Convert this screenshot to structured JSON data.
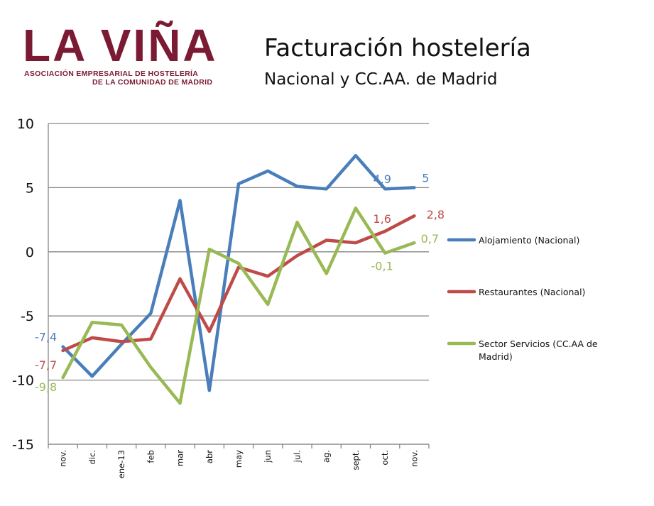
{
  "header": {
    "logo_main": "LA VIÑA",
    "logo_sub1": "ASOCIACIÓN EMPRESARIAL DE HOSTELERÍA",
    "logo_sub2": "DE LA COMUNIDAD DE MADRID",
    "title": "Facturación hostelería",
    "subtitle": "Nacional y CC.AA. de Madrid"
  },
  "colors": {
    "logo": "#7b1a33",
    "grid": "#868686",
    "axis": "#868686"
  },
  "chart_data": {
    "type": "line",
    "categories": [
      "nov.",
      "dic.",
      "ene-13",
      "feb",
      "mar",
      "abr",
      "may",
      "jun",
      "jul.",
      "ag.",
      "sept.",
      "oct.",
      "nov."
    ],
    "ylim": [
      -15,
      10
    ],
    "yticks": [
      "10",
      "5",
      "0",
      "-5",
      "-10",
      "-15"
    ],
    "grid": true,
    "legend_position": "right",
    "series": [
      {
        "name": "Alojamiento (Nacional)",
        "color": "#4a7ebb",
        "values": [
          -7.4,
          -9.7,
          -7.2,
          -4.8,
          4.0,
          -10.8,
          5.3,
          6.3,
          5.1,
          4.9,
          7.5,
          4.9,
          5.0
        ],
        "labels": [
          {
            "index": 0,
            "text": "-7,4"
          },
          {
            "index": 11,
            "text": "4,9"
          },
          {
            "index": 12,
            "text": "5"
          }
        ]
      },
      {
        "name": "Restaurantes (Nacional)",
        "color": "#be4b48",
        "values": [
          -7.7,
          -6.7,
          -7.0,
          -6.8,
          -2.1,
          -6.2,
          -1.2,
          -1.9,
          -0.3,
          0.9,
          0.7,
          1.6,
          2.8
        ],
        "labels": [
          {
            "index": 0,
            "text": "-7,7"
          },
          {
            "index": 11,
            "text": "1,6"
          },
          {
            "index": 12,
            "text": "2,8"
          }
        ]
      },
      {
        "name": "Sector Servicios (CC.AA de Madrid)",
        "color": "#98b954",
        "values": [
          -9.8,
          -5.5,
          -5.7,
          -9.0,
          -11.8,
          0.2,
          -0.9,
          -4.1,
          2.3,
          -1.7,
          3.4,
          -0.1,
          0.7
        ],
        "labels": [
          {
            "index": 0,
            "text": "-9,8"
          },
          {
            "index": 11,
            "text": "-0,1"
          },
          {
            "index": 12,
            "text": "0,7"
          }
        ]
      }
    ]
  }
}
